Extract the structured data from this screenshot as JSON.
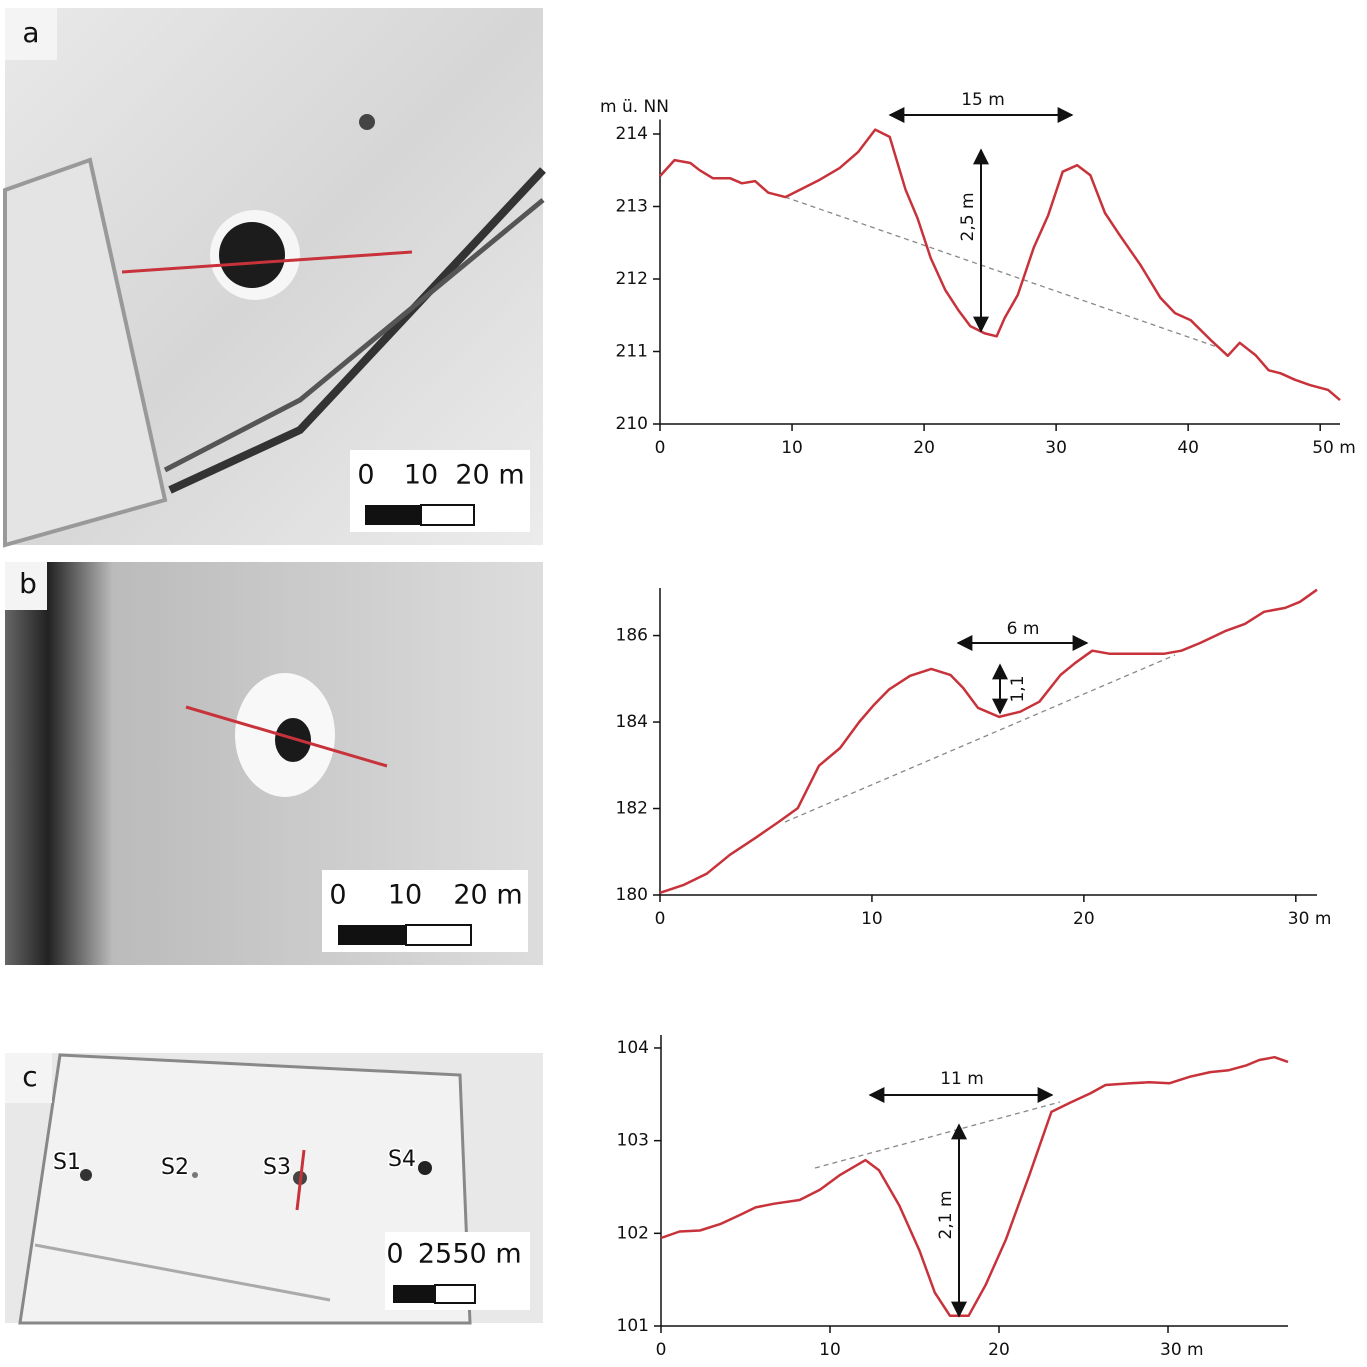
{
  "panels": [
    {
      "label": "a",
      "scale": [
        "0",
        "10",
        "20 m"
      ]
    },
    {
      "label": "b",
      "scale": [
        "0",
        "10",
        "20 m"
      ]
    },
    {
      "label": "c",
      "scale": [
        "0",
        "25",
        "50 m"
      ],
      "sites": [
        "S1",
        "S2",
        "S3",
        "S4"
      ]
    }
  ],
  "chart_data": [
    {
      "type": "line",
      "ylabel": "m ü. NN",
      "color": "#c8323a",
      "x": [
        0,
        1.1,
        2.3,
        3,
        4,
        5.3,
        6.2,
        7.2,
        8.2,
        9.5,
        10.6,
        12.1,
        13.6,
        15,
        16.3,
        17.4,
        18.6,
        19.5,
        20.5,
        21.6,
        22.6,
        23.5,
        24.6,
        25.5,
        26.1,
        27.1,
        28.3,
        29.4,
        30.5,
        31.6,
        32.6,
        33.7,
        34.8,
        36.4,
        37.9,
        39,
        40.2,
        41.7,
        43,
        43.9,
        45.1,
        46.1,
        47,
        48.1,
        49.2,
        50.6,
        51.5
      ],
      "values": [
        213.42,
        213.64,
        213.6,
        213.5,
        213.39,
        213.39,
        213.32,
        213.35,
        213.19,
        213.13,
        213.23,
        213.37,
        213.53,
        213.75,
        214.06,
        213.96,
        213.23,
        212.84,
        212.29,
        211.85,
        211.57,
        211.35,
        211.25,
        211.21,
        211.46,
        211.78,
        212.43,
        212.88,
        213.48,
        213.57,
        213.43,
        212.91,
        212.61,
        212.19,
        211.74,
        211.53,
        211.43,
        211.16,
        210.94,
        211.12,
        210.95,
        210.74,
        210.7,
        210.61,
        210.54,
        210.47,
        210.33
      ],
      "xlim": [
        0,
        51.5
      ],
      "ylim": [
        210,
        214.2
      ],
      "xticks": [
        0,
        10,
        20,
        30,
        40,
        {
          "value": 50,
          "label": "50 m"
        }
      ],
      "yticks": [
        210,
        211,
        212,
        213,
        214
      ],
      "annotations": [
        "15 m",
        "2,5 m"
      ]
    },
    {
      "type": "line",
      "color": "#c8323a",
      "x": [
        0,
        1.1,
        2.2,
        3.3,
        4.5,
        5.6,
        6.5,
        7.5,
        8.5,
        9.4,
        10.1,
        10.8,
        11.8,
        12.8,
        13.7,
        14.3,
        15,
        16,
        17,
        17.9,
        18.9,
        19.6,
        20.4,
        21.2,
        22.6,
        23.8,
        24.6,
        25.5,
        26.7,
        27.6,
        28.5,
        29.5,
        30.2,
        31
      ],
      "values": [
        180.05,
        180.23,
        180.49,
        180.93,
        181.32,
        181.69,
        182.01,
        182.99,
        183.4,
        184.0,
        184.4,
        184.75,
        185.07,
        185.23,
        185.09,
        184.79,
        184.33,
        184.12,
        184.24,
        184.47,
        185.09,
        185.37,
        185.65,
        185.58,
        185.58,
        185.58,
        185.65,
        185.83,
        186.11,
        186.27,
        186.55,
        186.64,
        186.78,
        187.06
      ],
      "xlim": [
        0,
        31
      ],
      "ylim": [
        180,
        187.1
      ],
      "xticks": [
        0,
        10,
        20,
        {
          "value": 30,
          "label": "30 m"
        }
      ],
      "yticks": [
        180,
        182,
        184,
        186
      ],
      "annotations": [
        "6 m",
        "1,1"
      ]
    },
    {
      "type": "line",
      "color": "#c8323a",
      "x": [
        0,
        1.1,
        2.3,
        3.5,
        4.7,
        5.6,
        6.7,
        8.2,
        9.4,
        10.6,
        12.1,
        12.9,
        14.1,
        15.3,
        16.2,
        17.1,
        18.2,
        19.2,
        20.4,
        21.8,
        23.1,
        24.2,
        25.4,
        26.3,
        27.8,
        28.9,
        30.1,
        31.3,
        32.5,
        33.6,
        34.6,
        35.4,
        36.3,
        37.1
      ],
      "values": [
        101.95,
        102.02,
        102.03,
        102.1,
        102.2,
        102.28,
        102.32,
        102.36,
        102.47,
        102.63,
        102.79,
        102.68,
        102.3,
        101.81,
        101.36,
        101.11,
        101.11,
        101.44,
        101.93,
        102.63,
        103.31,
        103.41,
        103.51,
        103.6,
        103.62,
        103.63,
        103.62,
        103.69,
        103.74,
        103.76,
        103.81,
        103.87,
        103.9,
        103.85
      ],
      "xlim": [
        0,
        37.1
      ],
      "ylim": [
        101,
        104.14
      ],
      "xticks": [
        0,
        10,
        20,
        {
          "value": 30,
          "label": "30 m"
        }
      ],
      "yticks": [
        101,
        102,
        103,
        104
      ],
      "annotations": [
        "11 m",
        "2,1 m"
      ]
    }
  ]
}
